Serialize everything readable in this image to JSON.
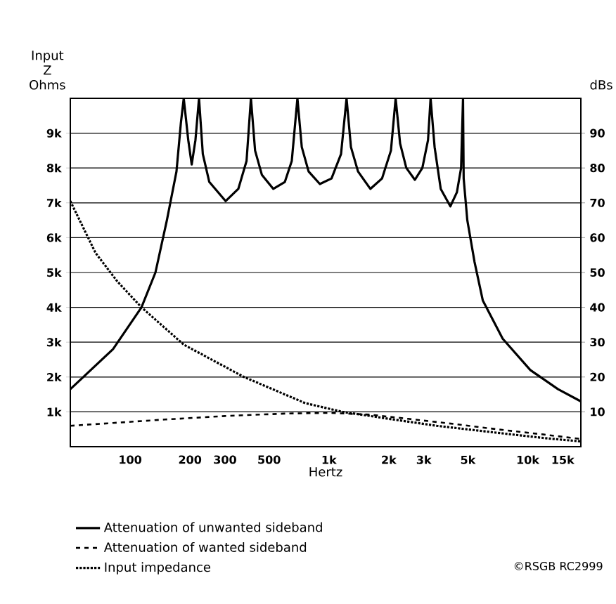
{
  "chart_data": {
    "type": "line",
    "xlabel": "Hertz",
    "ylabel": "Input Z Ohms",
    "y2label": "dBs",
    "log": "x",
    "grid": "y",
    "legend": "bottom",
    "xlim": [
      50,
      18500
    ],
    "ylim": [
      0,
      10000
    ],
    "y2lim": [
      0,
      100
    ],
    "xticks": [
      100,
      {
        "value": 200,
        "label": "200"
      },
      {
        "value": 300,
        "label": "300"
      },
      {
        "value": 500,
        "label": "500"
      },
      {
        "value": 1000,
        "label": "1k"
      },
      {
        "value": 2000,
        "label": "2k"
      },
      {
        "value": 3000,
        "label": "3k"
      },
      {
        "value": 5000,
        "label": "5k"
      },
      {
        "value": 10000,
        "label": "10k"
      },
      {
        "value": 15000,
        "label": "15k"
      }
    ],
    "yticks": [
      {
        "value": 1000,
        "label": "1k"
      },
      {
        "value": 2000,
        "label": "2k"
      },
      {
        "value": 3000,
        "label": "3k"
      },
      {
        "value": 4000,
        "label": "4k"
      },
      {
        "value": 5000,
        "label": "5k"
      },
      {
        "value": 6000,
        "label": "6k"
      },
      {
        "value": 7000,
        "label": "7k"
      },
      {
        "value": 8000,
        "label": "8k"
      },
      {
        "value": 9000,
        "label": "9k"
      }
    ],
    "y2ticks": [
      10,
      20,
      30,
      40,
      50,
      60,
      70,
      80,
      90
    ],
    "series": [
      {
        "name": "Attenuation of unwanted sideband",
        "color": "#000000",
        "axis": "y2",
        "line_style": "solid",
        "x": [
          50,
          82,
          114,
          134,
          153,
          171,
          180,
          186,
          196,
          204,
          213,
          222,
          232,
          250,
          302,
          350,
          385,
          405,
          425,
          460,
          525,
          600,
          650,
          694,
          730,
          790,
          900,
          1030,
          1150,
          1226,
          1290,
          1400,
          1615,
          1850,
          2050,
          2165,
          2280,
          2450,
          2705,
          2950,
          3150,
          3245,
          3400,
          3650,
          4080,
          4400,
          4620,
          4725,
          4760,
          4965,
          5400,
          5940,
          7480,
          10300,
          14200,
          18500
        ],
        "values": [
          16.5,
          28,
          40,
          50,
          65,
          79,
          93,
          100,
          88,
          81,
          88,
          100,
          84,
          76,
          70.5,
          74,
          82,
          100,
          85,
          78,
          74,
          76,
          82,
          100,
          86,
          79,
          75.4,
          77,
          84,
          100,
          86,
          79,
          74,
          77,
          85,
          100,
          87,
          80,
          76.6,
          80,
          88,
          100,
          86,
          74,
          69,
          73,
          80,
          100,
          77,
          65,
          53,
          42,
          31,
          22,
          16.5,
          13
        ]
      },
      {
        "name": "Attenuation of wanted sideband",
        "color": "#000000",
        "axis": "y2",
        "line_style": "dashed",
        "x": [
          50,
          82,
          150,
          300,
          600,
          1000,
          1600,
          2500,
          4000,
          7000,
          12000,
          18500
        ],
        "values": [
          6,
          6.8,
          7.8,
          8.8,
          9.5,
          9.7,
          9.2,
          8,
          6.7,
          5,
          3.5,
          2.2
        ]
      },
      {
        "name": "Input impedance",
        "color": "#000000",
        "axis": "y",
        "line_style": "dotted",
        "x": [
          50,
          67,
          86,
          114,
          186,
          374,
          760,
          1170,
          2000,
          3480,
          7000,
          12000,
          18500
        ],
        "values": [
          7050,
          5560,
          4750,
          4000,
          2930,
          2000,
          1250,
          1000,
          800,
          600,
          400,
          250,
          150
        ]
      }
    ],
    "annotations": [
      "©RSGB RC2999"
    ]
  }
}
